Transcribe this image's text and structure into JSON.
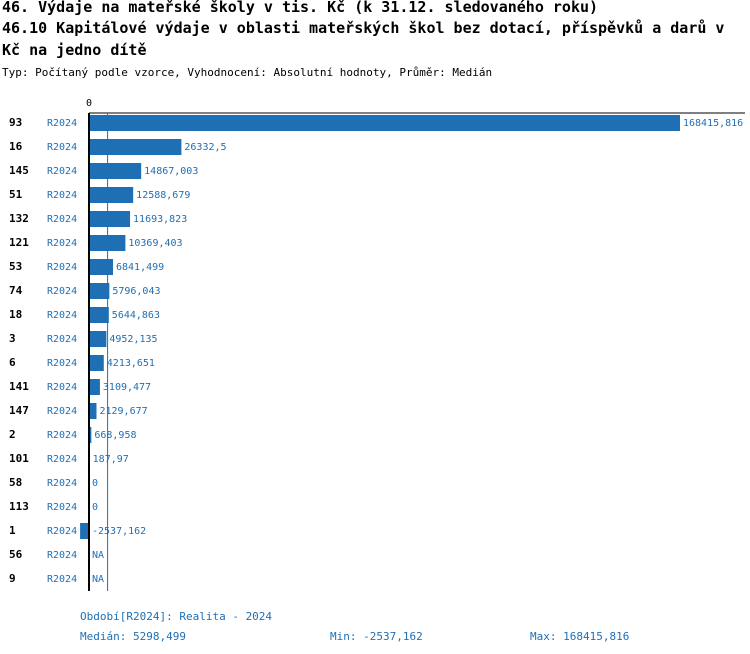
{
  "title_line1": "46. Výdaje na mateřské školy v tis. Kč (k 31.12. sledovaného roku)",
  "title_line2": "46.10 Kapitálové výdaje v oblasti mateřských škol bez dotací, příspěvků a darů v",
  "title_line3": "Kč na jedno dítě",
  "subtitle": "Typ: Počítaný podle vzorce, Vyhodnocení: Absolutní hodnoty, Průměr: Medián",
  "footer": {
    "period": "Období[R2024]: Realita - 2024",
    "median": "Medián: 5298,499",
    "min": "Min: -2537,162",
    "max": "Max: 168415,816"
  },
  "colors": {
    "bar": "#1f6fb4",
    "label": "#1f6fb4",
    "axis": "#000000"
  },
  "chart_data": {
    "type": "bar",
    "orientation": "horizontal",
    "zero_label": "0",
    "median_value": 5298.499,
    "xlim": [
      0,
      168415.816
    ],
    "rows": [
      {
        "id": "93",
        "period": "R2024",
        "value": 168415.816,
        "label": "168415,816"
      },
      {
        "id": "16",
        "period": "R2024",
        "value": 26332.5,
        "label": "26332,5"
      },
      {
        "id": "145",
        "period": "R2024",
        "value": 14867.003,
        "label": "14867,003"
      },
      {
        "id": "51",
        "period": "R2024",
        "value": 12588.679,
        "label": "12588,679"
      },
      {
        "id": "132",
        "period": "R2024",
        "value": 11693.823,
        "label": "11693,823"
      },
      {
        "id": "121",
        "period": "R2024",
        "value": 10369.403,
        "label": "10369,403"
      },
      {
        "id": "53",
        "period": "R2024",
        "value": 6841.499,
        "label": "6841,499"
      },
      {
        "id": "74",
        "period": "R2024",
        "value": 5796.043,
        "label": "5796,043"
      },
      {
        "id": "18",
        "period": "R2024",
        "value": 5644.863,
        "label": "5644,863"
      },
      {
        "id": "3",
        "period": "R2024",
        "value": 4952.135,
        "label": "4952,135"
      },
      {
        "id": "6",
        "period": "R2024",
        "value": 4213.651,
        "label": "4213,651"
      },
      {
        "id": "141",
        "period": "R2024",
        "value": 3109.477,
        "label": "3109,477"
      },
      {
        "id": "147",
        "period": "R2024",
        "value": 2129.677,
        "label": "2129,677"
      },
      {
        "id": "2",
        "period": "R2024",
        "value": 668.958,
        "label": "668,958"
      },
      {
        "id": "101",
        "period": "R2024",
        "value": 187.97,
        "label": "187,97"
      },
      {
        "id": "58",
        "period": "R2024",
        "value": 0,
        "label": "0"
      },
      {
        "id": "113",
        "period": "R2024",
        "value": 0,
        "label": "0"
      },
      {
        "id": "1",
        "period": "R2024",
        "value": -2537.162,
        "label": "-2537,162"
      },
      {
        "id": "56",
        "period": "R2024",
        "value": null,
        "label": "NA"
      },
      {
        "id": "9",
        "period": "R2024",
        "value": null,
        "label": "NA"
      }
    ]
  }
}
